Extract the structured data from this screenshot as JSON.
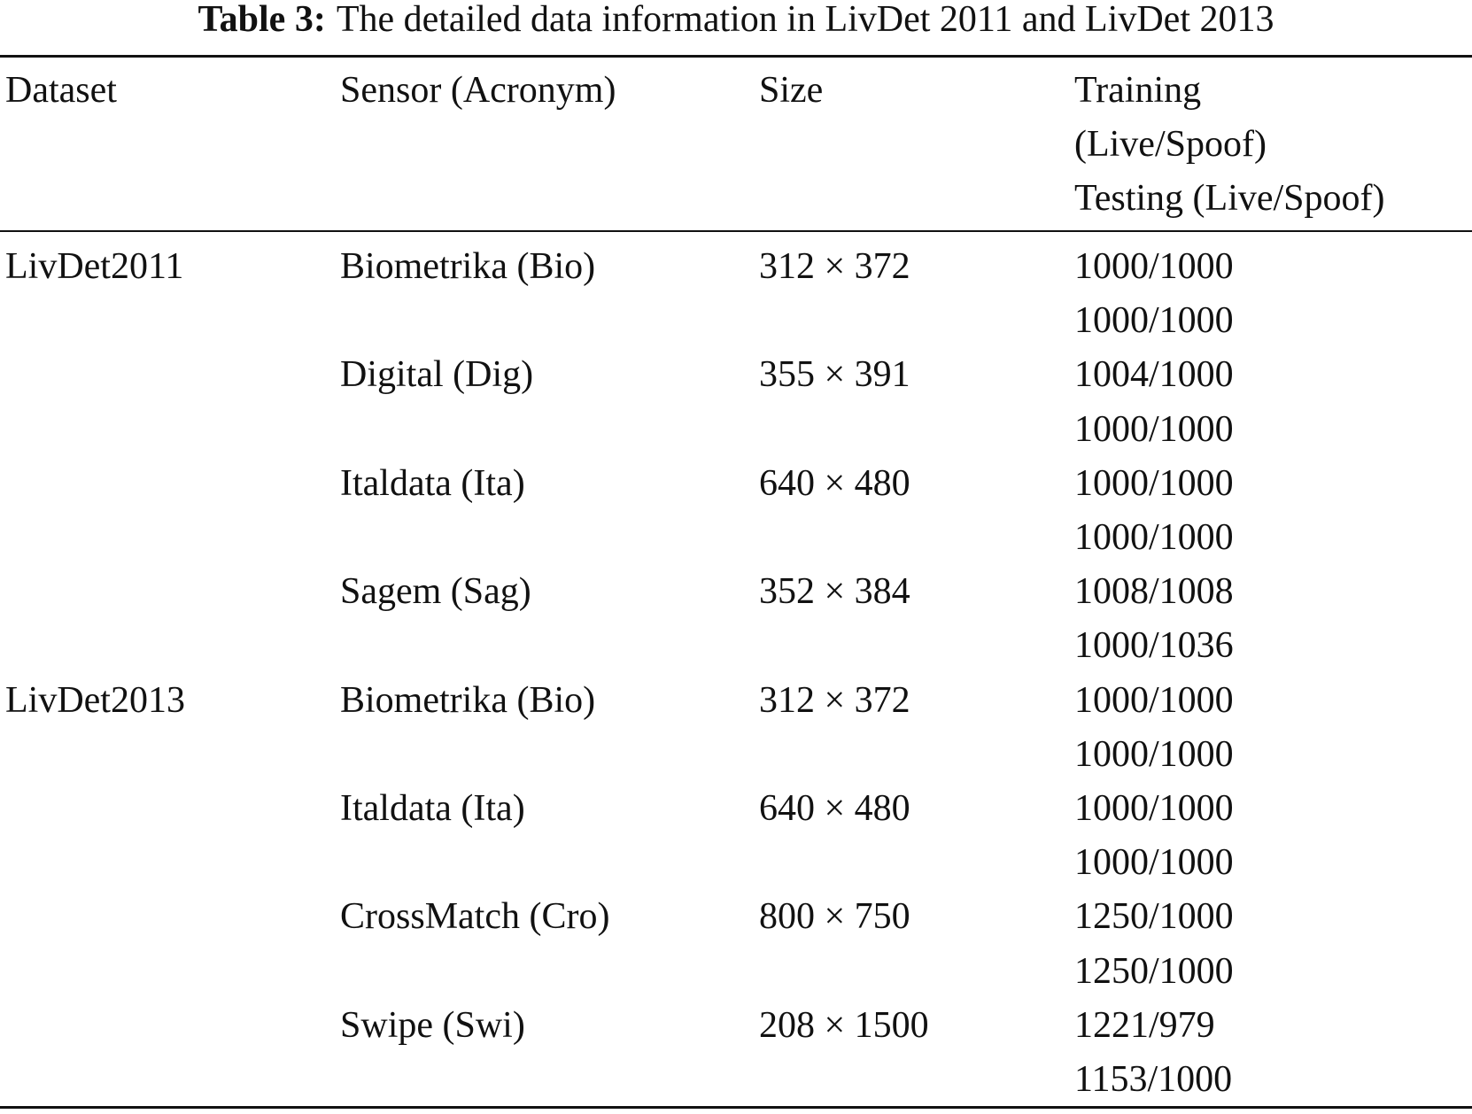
{
  "caption": {
    "label": "Table 3:",
    "text": "The detailed data information in LivDet 2011 and LivDet 2013"
  },
  "table": {
    "header": [
      "Dataset",
      "Sensor (Acronym)",
      "Size",
      [
        "Training",
        "(Live/Spoof)",
        "Testing (Live/Spoof)"
      ]
    ],
    "groups": [
      {
        "dataset": "LivDet2011",
        "rows": [
          {
            "sensor": "Biometrika (Bio)",
            "size": "312 × 372",
            "training": "1000/1000",
            "testing": "1000/1000"
          },
          {
            "sensor": "Digital (Dig)",
            "size": "355 × 391",
            "training": "1004/1000",
            "testing": "1000/1000"
          },
          {
            "sensor": "Italdata (Ita)",
            "size": "640 × 480",
            "training": "1000/1000",
            "testing": "1000/1000"
          },
          {
            "sensor": "Sagem (Sag)",
            "size": "352 × 384",
            "training": "1008/1008",
            "testing": "1000/1036"
          }
        ]
      },
      {
        "dataset": "LivDet2013",
        "rows": [
          {
            "sensor": "Biometrika (Bio)",
            "size": "312 × 372",
            "training": "1000/1000",
            "testing": "1000/1000"
          },
          {
            "sensor": "Italdata (Ita)",
            "size": "640 × 480",
            "training": "1000/1000",
            "testing": "1000/1000"
          },
          {
            "sensor": "CrossMatch (Cro)",
            "size": "800 × 750",
            "training": "1250/1000",
            "testing": "1250/1000"
          },
          {
            "sensor": "Swipe (Swi)",
            "size": "208 × 1500",
            "training": "1221/979",
            "testing": "1153/1000"
          }
        ]
      }
    ]
  }
}
